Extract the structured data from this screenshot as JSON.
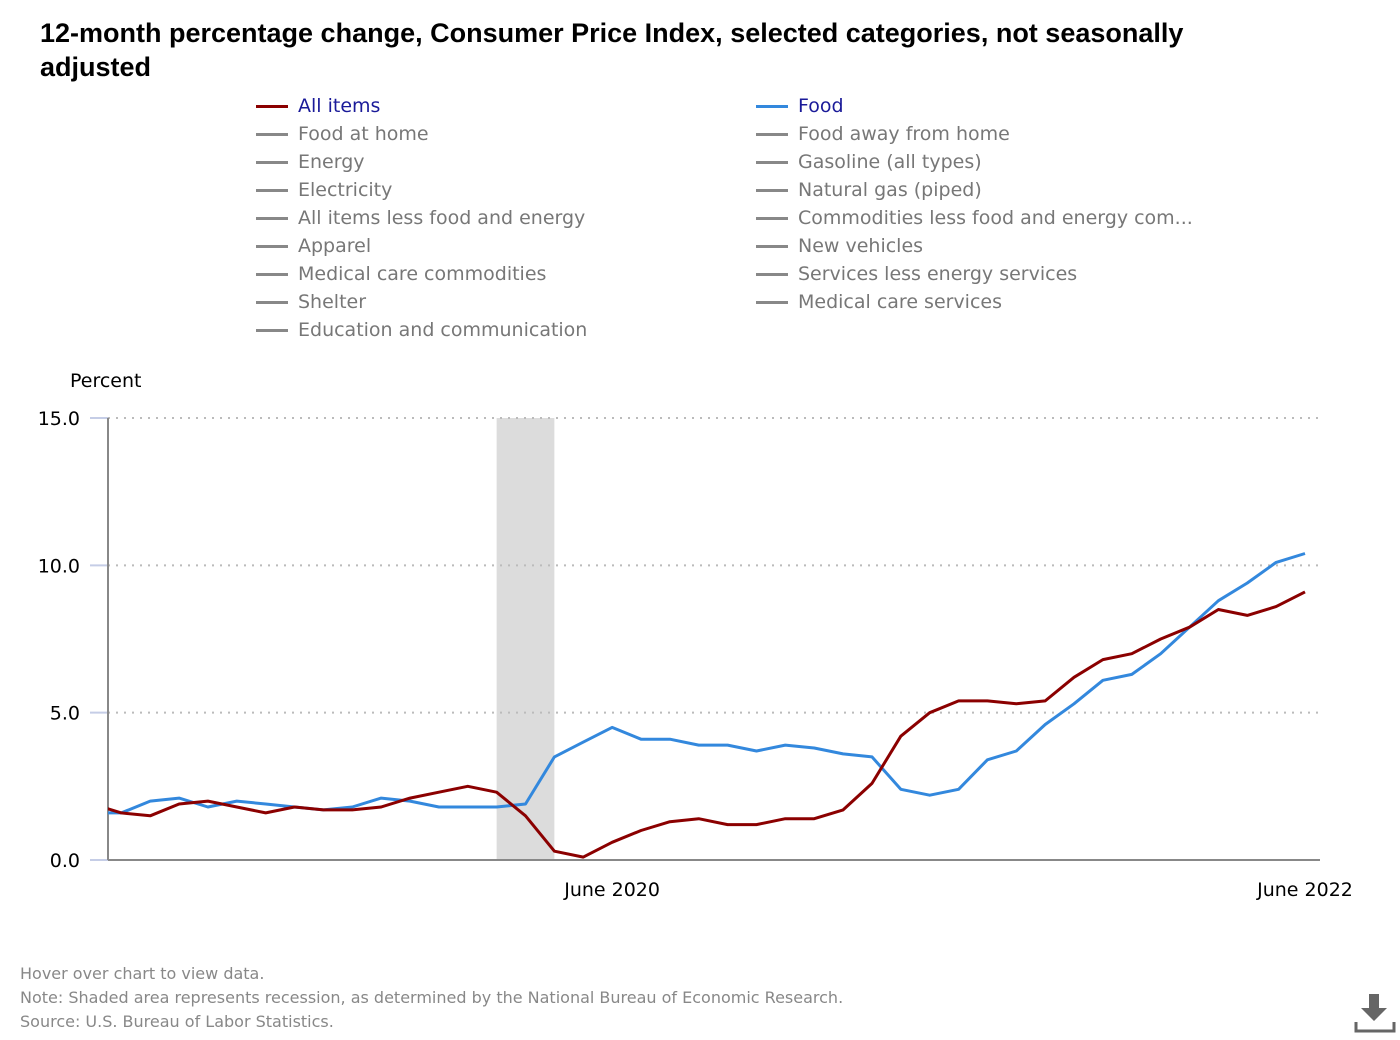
{
  "title": "12-month percentage change, Consumer Price Index, selected categories, not seasonally adjusted",
  "legend": {
    "col1": [
      "All items",
      "Food at home",
      "Energy",
      "Electricity",
      "All items less food and energy",
      "Apparel",
      "Medical care commodities",
      "Shelter",
      "Education and communication"
    ],
    "col2": [
      "Food",
      "Food away from home",
      "Gasoline (all types)",
      "Natural gas (piped)",
      "Commodities less food and energy com...",
      "New vehicles",
      "Services less energy services",
      "Medical care services"
    ]
  },
  "footer": {
    "hover": "Hover over chart to view data.",
    "note": "Note: Shaded area represents recession, as determined by the National Bureau of Economic Research.",
    "source": "Source: U.S. Bureau of Labor Statistics."
  },
  "chart_data": {
    "type": "line",
    "ylabel": "Percent",
    "ylim": [
      0,
      15
    ],
    "yticks": [
      "0.0",
      "5.0",
      "10.0",
      "15.0"
    ],
    "xtick_labels": [
      {
        "label": "June 2020",
        "index": 18
      },
      {
        "label": "June 2022",
        "index": 42
      }
    ],
    "x_start": "Dec 2018",
    "x_end": "Jun 2022",
    "recession": {
      "start_index": 14,
      "end_index": 16
    },
    "grid": true,
    "series": [
      {
        "name": "All items",
        "color": "#8b0000",
        "values": [
          1.9,
          1.6,
          1.5,
          1.9,
          2.0,
          1.8,
          1.6,
          1.8,
          1.7,
          1.7,
          1.8,
          2.1,
          2.3,
          2.5,
          2.3,
          1.5,
          0.3,
          0.1,
          0.6,
          1.0,
          1.3,
          1.4,
          1.2,
          1.2,
          1.4,
          1.4,
          1.7,
          2.6,
          4.2,
          5.0,
          5.4,
          5.4,
          5.3,
          5.4,
          6.2,
          6.8,
          7.0,
          7.5,
          7.9,
          8.5,
          8.3,
          8.6,
          9.1
        ]
      },
      {
        "name": "Food",
        "color": "#3388dd",
        "values": [
          1.6,
          1.6,
          2.0,
          2.1,
          1.8,
          2.0,
          1.9,
          1.8,
          1.7,
          1.8,
          2.1,
          2.0,
          1.8,
          1.8,
          1.8,
          1.9,
          3.5,
          4.0,
          4.5,
          4.1,
          4.1,
          3.9,
          3.9,
          3.7,
          3.9,
          3.8,
          3.6,
          3.5,
          2.4,
          2.2,
          2.4,
          3.4,
          3.7,
          4.6,
          5.3,
          6.1,
          6.3,
          7.0,
          7.9,
          8.8,
          9.4,
          10.1,
          10.4
        ]
      }
    ]
  }
}
